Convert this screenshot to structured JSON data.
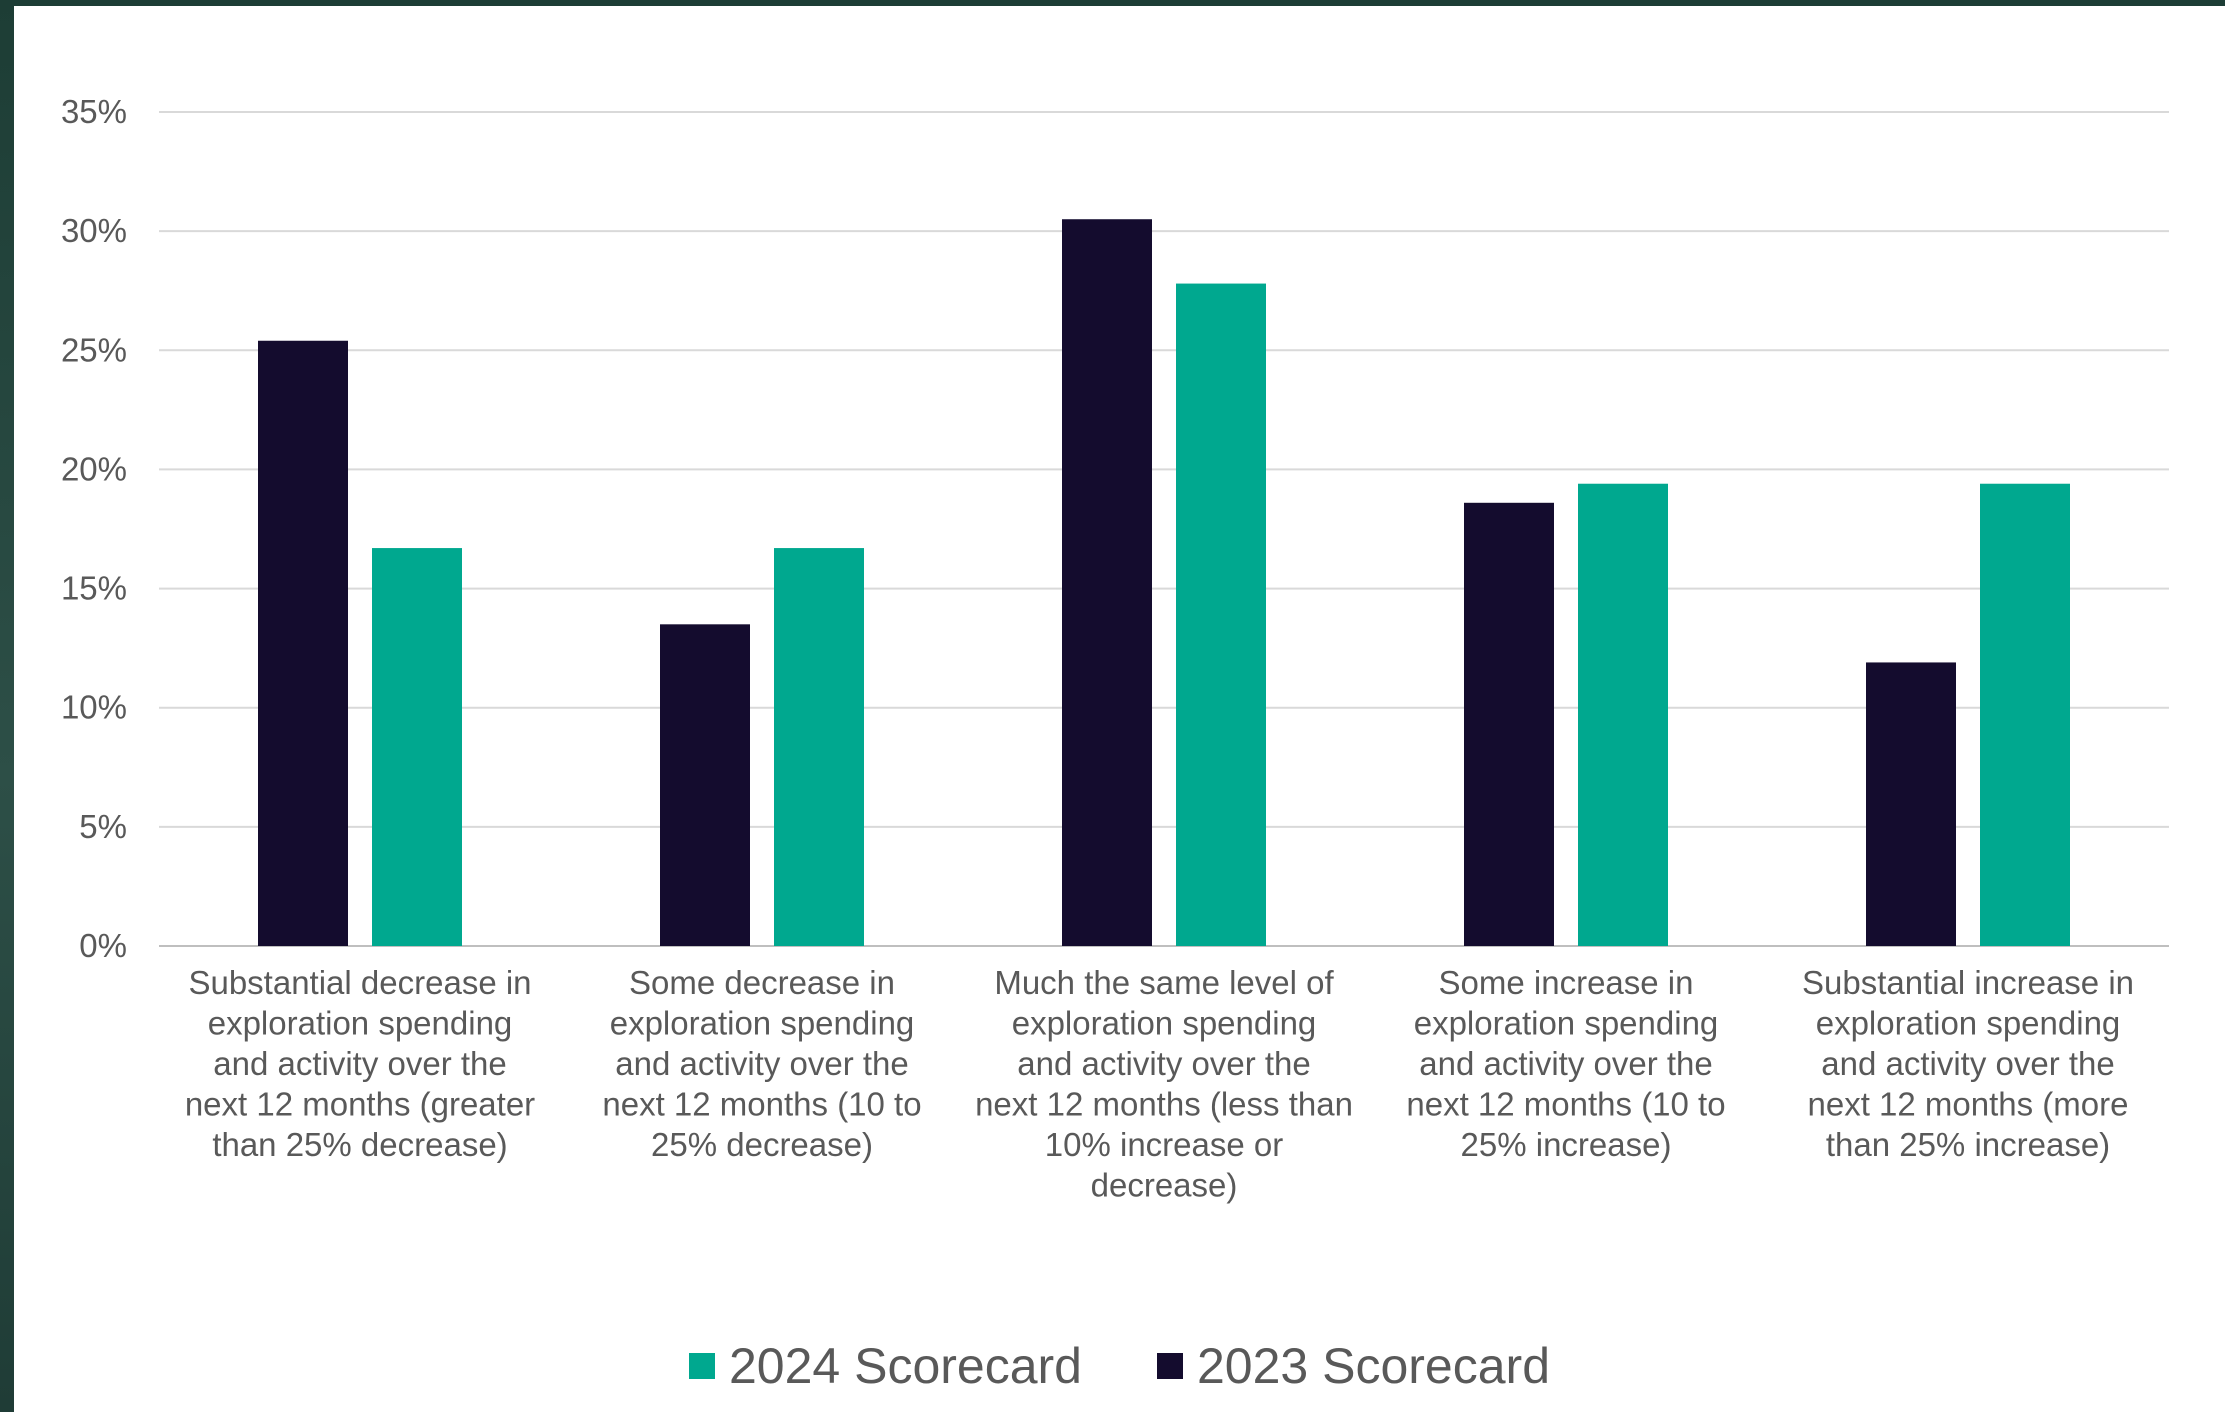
{
  "chart_data": {
    "type": "bar",
    "categories": [
      [
        "Substantial decrease in",
        "exploration spending",
        "and activity over the",
        "next 12 months (greater",
        "than 25% decrease)"
      ],
      [
        "Some decrease in",
        "exploration spending",
        "and activity over the",
        "next 12 months (10 to",
        "25% decrease)"
      ],
      [
        "Much the same level of",
        "exploration spending",
        "and activity over the",
        "next 12 months (less than",
        "10% increase or",
        "decrease)"
      ],
      [
        "Some increase in",
        "exploration spending",
        "and activity over the",
        "next 12 months (10 to",
        "25% increase)"
      ],
      [
        "Substantial increase in",
        "exploration spending",
        "and activity over the",
        "next 12 months (more",
        "than 25% increase)"
      ]
    ],
    "series": [
      {
        "name": "2023 Scorecard",
        "color": "#140c2e",
        "values": [
          25.4,
          13.5,
          30.5,
          18.6,
          11.9
        ]
      },
      {
        "name": "2024 Scorecard",
        "color": "#00a88f",
        "values": [
          16.7,
          16.7,
          27.8,
          19.4,
          19.4
        ]
      }
    ],
    "ylim": [
      0,
      35
    ],
    "y_ticks": [
      "0%",
      "5%",
      "10%",
      "15%",
      "20%",
      "25%",
      "30%",
      "35%"
    ],
    "grid": true,
    "legend_position": "bottom",
    "legend_order": [
      "2024 Scorecard",
      "2023 Scorecard"
    ],
    "title": "",
    "xlabel": "",
    "ylabel": ""
  }
}
